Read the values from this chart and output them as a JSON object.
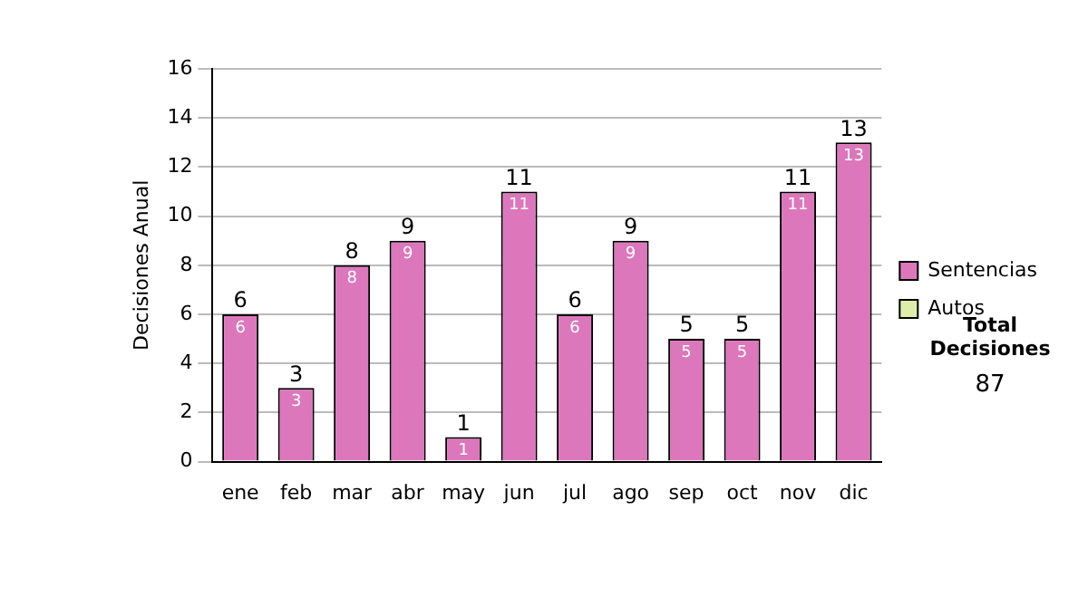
{
  "chart_data": {
    "type": "bar",
    "ylabel": "Decisiones Anual",
    "categories": [
      "ene",
      "feb",
      "mar",
      "abr",
      "may",
      "jun",
      "jul",
      "ago",
      "sep",
      "oct",
      "nov",
      "dic"
    ],
    "series": [
      {
        "name": "Sentencias",
        "color": "#dd77bb",
        "values": [
          6,
          3,
          8,
          9,
          1,
          11,
          6,
          9,
          5,
          5,
          11,
          13
        ]
      },
      {
        "name": "Autos",
        "color": "#ddeeaa",
        "values": [
          null,
          null,
          null,
          null,
          null,
          null,
          null,
          null,
          null,
          null,
          null,
          null
        ]
      }
    ],
    "stacked": true,
    "ylim": [
      0,
      16
    ],
    "yticks": [
      0,
      2,
      4,
      6,
      8,
      10,
      12,
      14,
      16
    ],
    "grid": "y",
    "legend": "right",
    "data_labels": true,
    "totals": [
      "6",
      "3",
      "8",
      "9",
      "1",
      "11",
      "6",
      "9",
      "5",
      "5",
      "11",
      "13"
    ],
    "annotations": [
      "Total Decisiones",
      "87"
    ]
  }
}
